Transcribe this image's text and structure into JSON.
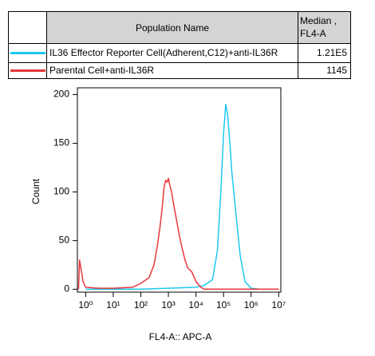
{
  "chart_data": {
    "type": "line",
    "table": {
      "columns": [
        "Population Name",
        "Median , FL4-A"
      ],
      "medians": [
        {
          "value": 121000,
          "label": "1.21E5"
        },
        1145
      ]
    },
    "xlabel": "FL4-A:: APC-A",
    "ylabel": "Count",
    "xscale": "log",
    "xlim": [
      0.5,
      12000000
    ],
    "ylim": [
      -3,
      207
    ],
    "xticks": [
      {
        "value": 1,
        "label": "10⁰"
      },
      {
        "value": 10,
        "label": "10¹"
      },
      {
        "value": 100,
        "label": "10²"
      },
      {
        "value": 1000,
        "label": "10³"
      },
      {
        "value": 10000,
        "label": "10⁴"
      },
      {
        "value": 100000,
        "label": "10⁵"
      },
      {
        "value": 1000000,
        "label": "10⁶"
      },
      {
        "value": 10000000,
        "label": "10⁷"
      }
    ],
    "yticks": [
      0,
      50,
      100,
      150,
      200
    ],
    "grid": false,
    "series": [
      {
        "name": "IL36 Effector Reporter Cell(Adherent,C12)+anti-IL36R",
        "color": "#1ec8f0",
        "x": [
          1,
          10,
          100,
          1000,
          10000,
          20000,
          40000,
          60000,
          80000,
          100000,
          120000,
          140000,
          170000,
          200000,
          300000,
          400000,
          600000,
          1000000,
          2000000,
          10000000
        ],
        "values": [
          0,
          0,
          0,
          1,
          2,
          4,
          10,
          40,
          100,
          160,
          190,
          180,
          150,
          120,
          70,
          35,
          8,
          1,
          0,
          0
        ]
      },
      {
        "name": "Parental Cell+anti-IL36R",
        "color": "#e8383a",
        "x": [
          0.55,
          0.6,
          0.8,
          1,
          3,
          10,
          50,
          100,
          200,
          300,
          400,
          500,
          600,
          700,
          800,
          900,
          1000,
          1100,
          1300,
          1600,
          2000,
          2500,
          3000,
          4000,
          5000,
          7000,
          10000,
          15000,
          20000,
          100000,
          10000000
        ],
        "values": [
          0,
          30,
          8,
          2,
          1,
          1,
          2,
          6,
          12,
          25,
          45,
          65,
          85,
          105,
          112,
          110,
          114,
          108,
          100,
          85,
          70,
          55,
          45,
          30,
          22,
          18,
          8,
          2,
          0,
          0,
          0
        ]
      }
    ]
  }
}
